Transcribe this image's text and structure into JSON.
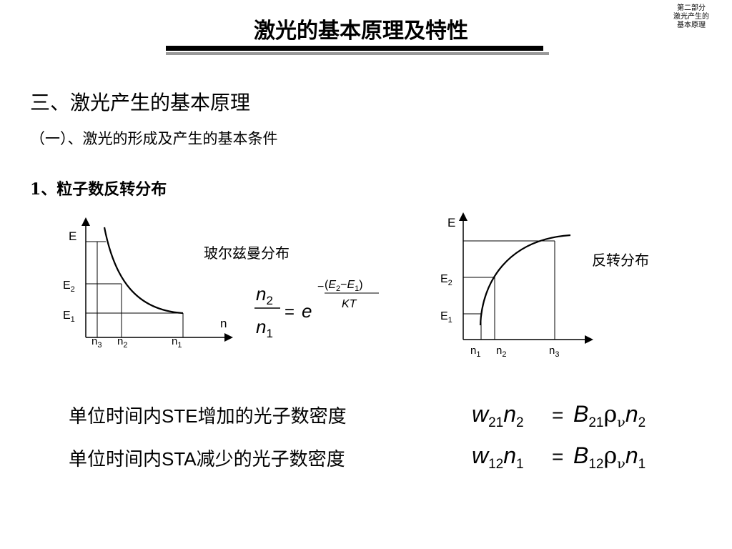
{
  "header": {
    "title": "激光的基本原理及特性",
    "corner_lines": [
      "第二部分",
      "激光产生的",
      "基本原理"
    ]
  },
  "section": {
    "heading": "三、激光产生的基本原理",
    "subheading": "（一）、激光的形成及产生的基本条件",
    "item": "1、粒子数反转分布"
  },
  "boltzmann": {
    "caption": "玻尔兹曼分布",
    "y_axis": "E",
    "x_axis": "n",
    "levels": [
      "E2",
      "E1"
    ],
    "x_ticks": [
      "n3",
      "n2",
      "n1"
    ],
    "formula": "n2/n1 = e^(-(E2-E1)/KT)"
  },
  "inverted": {
    "caption": "反转分布",
    "y_axis": "E",
    "levels": [
      "E2",
      "E1"
    ],
    "x_ticks": [
      "n1",
      "n2",
      "n3"
    ]
  },
  "statements": [
    {
      "text": "单位时间内STE增加的光子数密度",
      "formula": "w21 n2 = B21 ρν n2"
    },
    {
      "text": "单位时间内STA减少的光子数密度",
      "formula": "w12 n1 = B12 ρν n1"
    }
  ]
}
